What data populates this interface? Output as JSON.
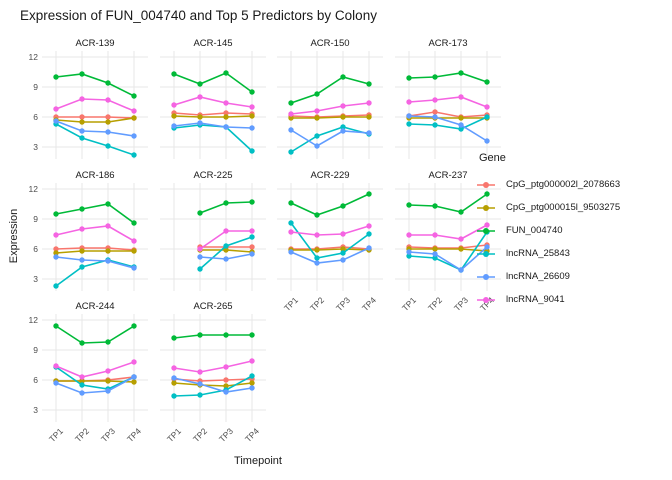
{
  "title": "Expression of FUN_004740 and Top 5 Predictors by Colony",
  "axes": {
    "x_title": "Timepoint",
    "y_title": "Expression",
    "x_ticks": [
      "TP1",
      "TP2",
      "TP3",
      "TP4"
    ],
    "y_ticks": [
      12,
      9,
      6,
      3
    ]
  },
  "legend": {
    "title": "Gene",
    "entries": [
      {
        "label": "CpG_ptg000002l_2078663",
        "color": "#F8766D"
      },
      {
        "label": "CpG_ptg000015l_9503275",
        "color": "#B79F00"
      },
      {
        "label": "FUN_004740",
        "color": "#00BA38"
      },
      {
        "label": "lncRNA_25843",
        "color": "#00BFC4"
      },
      {
        "label": "lncRNA_26609",
        "color": "#619CFF"
      },
      {
        "label": "lncRNA_9041",
        "color": "#F564E2"
      }
    ]
  },
  "chart_data": {
    "type": "line",
    "title": "Expression of FUN_004740 and Top 5 Predictors by Colony",
    "xlabel": "Timepoint",
    "ylabel": "Expression",
    "x": [
      "TP1",
      "TP2",
      "TP3",
      "TP4"
    ],
    "ylim": [
      1.8,
      12.6
    ],
    "y_ticks": [
      3,
      6,
      9,
      12
    ],
    "grid": "major",
    "legend_position": "right",
    "facet_by": "Colony",
    "genes": [
      {
        "name": "CpG_ptg000002l_2078663",
        "color": "#F8766D"
      },
      {
        "name": "CpG_ptg000015l_9503275",
        "color": "#B79F00"
      },
      {
        "name": "FUN_004740",
        "color": "#00BA38"
      },
      {
        "name": "lncRNA_25843",
        "color": "#00BFC4"
      },
      {
        "name": "lncRNA_26609",
        "color": "#619CFF"
      },
      {
        "name": "lncRNA_9041",
        "color": "#F564E2"
      }
    ],
    "series_order_note": "facets[].series arrays follow the order of genes[] above; values are per timepoint TP1-TP4, null = missing",
    "facets": [
      {
        "colony": "ACR-139",
        "series": [
          [
            6.0,
            6.0,
            6.0,
            5.9
          ],
          [
            5.7,
            5.5,
            5.5,
            5.9
          ],
          [
            10.0,
            10.3,
            9.4,
            8.1
          ],
          [
            5.3,
            3.9,
            3.1,
            2.2
          ],
          [
            5.6,
            4.6,
            4.5,
            4.1
          ],
          [
            6.8,
            7.8,
            7.7,
            6.6
          ]
        ]
      },
      {
        "colony": "ACR-145",
        "series": [
          [
            6.4,
            6.2,
            6.4,
            6.3
          ],
          [
            6.1,
            6.0,
            6.0,
            6.1
          ],
          [
            10.3,
            9.3,
            10.4,
            8.5
          ],
          [
            4.9,
            5.2,
            5.0,
            2.6
          ],
          [
            5.1,
            5.4,
            5.0,
            4.9
          ],
          [
            7.2,
            8.0,
            7.4,
            7.0
          ]
        ]
      },
      {
        "colony": "ACR-150",
        "series": [
          [
            6.1,
            6.0,
            6.1,
            6.2
          ],
          [
            5.9,
            5.9,
            6.0,
            6.0
          ],
          [
            7.4,
            8.3,
            10.0,
            9.3
          ],
          [
            2.5,
            4.1,
            5.0,
            4.3
          ],
          [
            4.7,
            3.1,
            4.6,
            4.4
          ],
          [
            6.3,
            6.6,
            7.1,
            7.4
          ]
        ]
      },
      {
        "colony": "ACR-173",
        "series": [
          [
            6.1,
            6.5,
            6.0,
            6.2
          ],
          [
            5.9,
            5.9,
            5.9,
            5.9
          ],
          [
            9.9,
            10.0,
            10.4,
            9.5
          ],
          [
            5.3,
            5.2,
            4.8,
            6.0
          ],
          [
            6.1,
            6.0,
            5.2,
            3.6
          ],
          [
            7.5,
            7.7,
            8.0,
            7.0
          ]
        ]
      },
      {
        "colony": "ACR-186",
        "series": [
          [
            6.0,
            6.1,
            6.1,
            5.9
          ],
          [
            5.6,
            5.8,
            5.8,
            5.8
          ],
          [
            9.5,
            10.0,
            10.5,
            8.6
          ],
          [
            2.3,
            4.2,
            4.9,
            4.2
          ],
          [
            5.2,
            4.9,
            4.8,
            4.1
          ],
          [
            7.4,
            8.0,
            8.3,
            6.8
          ]
        ]
      },
      {
        "colony": "ACR-225",
        "series": [
          [
            null,
            6.2,
            6.2,
            6.2
          ],
          [
            null,
            5.9,
            5.9,
            5.7
          ],
          [
            null,
            9.6,
            10.6,
            10.7
          ],
          [
            null,
            4.0,
            6.3,
            7.2
          ],
          [
            null,
            5.2,
            5.0,
            5.5
          ],
          [
            null,
            6.0,
            7.8,
            7.8
          ]
        ]
      },
      {
        "colony": "ACR-229",
        "series": [
          [
            6.0,
            6.0,
            6.2,
            6.0
          ],
          [
            5.9,
            5.9,
            6.0,
            5.9
          ],
          [
            10.6,
            9.4,
            10.3,
            11.5
          ],
          [
            8.6,
            5.1,
            5.6,
            7.5
          ],
          [
            5.7,
            4.6,
            4.9,
            6.1
          ],
          [
            7.7,
            7.4,
            7.5,
            8.3
          ]
        ]
      },
      {
        "colony": "ACR-237",
        "series": [
          [
            6.2,
            6.1,
            6.1,
            6.4
          ],
          [
            6.0,
            6.0,
            6.0,
            5.8
          ],
          [
            10.4,
            10.3,
            9.7,
            11.5
          ],
          [
            5.3,
            5.1,
            3.9,
            7.7
          ],
          [
            5.7,
            5.5,
            3.9,
            6.2
          ],
          [
            7.4,
            7.4,
            7.0,
            8.4
          ]
        ]
      },
      {
        "colony": "ACR-244",
        "series": [
          [
            5.9,
            5.9,
            6.0,
            6.3
          ],
          [
            5.9,
            5.9,
            5.9,
            5.8
          ],
          [
            11.4,
            9.7,
            9.8,
            11.4
          ],
          [
            7.3,
            5.5,
            5.1,
            6.3
          ],
          [
            5.7,
            4.7,
            4.9,
            6.3
          ],
          [
            7.4,
            6.3,
            6.9,
            7.8
          ]
        ]
      },
      {
        "colony": "ACR-265",
        "series": [
          [
            6.1,
            5.9,
            6.0,
            6.1
          ],
          [
            5.7,
            5.5,
            5.4,
            5.7
          ],
          [
            10.2,
            10.5,
            10.5,
            10.5
          ],
          [
            4.4,
            4.5,
            5.0,
            6.4
          ],
          [
            6.2,
            5.6,
            4.8,
            5.2
          ],
          [
            7.2,
            6.8,
            7.3,
            7.9
          ]
        ]
      }
    ]
  }
}
